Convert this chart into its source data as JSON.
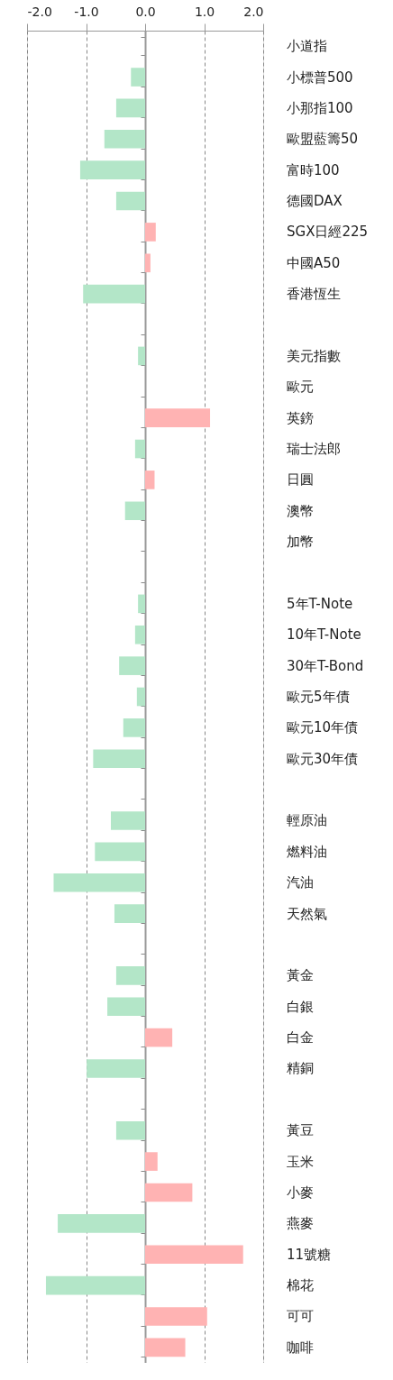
{
  "chart_data": {
    "type": "bar",
    "orientation": "horizontal",
    "categories": [
      "小道指",
      "小標普500",
      "小那指100",
      "歐盟藍籌50",
      "富時100",
      "德國DAX",
      "SGX日經225",
      "中國A50",
      "香港恆生",
      null,
      "美元指數",
      "歐元",
      "英鎊",
      "瑞士法郎",
      "日圓",
      "澳幣",
      "加幣",
      null,
      "5年T-Note",
      "10年T-Note",
      "30年T-Bond",
      "歐元5年債",
      "歐元10年債",
      "歐元30年債",
      null,
      "輕原油",
      "燃料油",
      "汽油",
      "天然氣",
      null,
      "黃金",
      "白銀",
      "白金",
      "精銅",
      null,
      "黃豆",
      "玉米",
      "小麥",
      "燕麥",
      "11號糖",
      "棉花",
      "可可",
      "咖啡"
    ],
    "values": [
      null,
      -0.24,
      -0.49,
      -0.69,
      -1.1,
      -0.49,
      0.18,
      0.09,
      -1.05,
      null,
      -0.12,
      null,
      1.1,
      -0.17,
      0.16,
      -0.34,
      null,
      null,
      -0.12,
      -0.17,
      -0.44,
      -0.14,
      -0.37,
      -0.88,
      null,
      -0.58,
      -0.85,
      -1.55,
      -0.52,
      null,
      -0.49,
      -0.64,
      0.46,
      -0.99,
      null,
      -0.49,
      0.21,
      0.8,
      -1.48,
      1.66,
      -1.68,
      1.05,
      0.68
    ],
    "colors": [
      null,
      "#b3e6c8",
      "#b3e6c8",
      "#b3e6c8",
      "#b3e6c8",
      "#b3e6c8",
      "#ffb3b3",
      "#ffb3b3",
      "#b3e6c8",
      null,
      "#b3e6c8",
      null,
      "#ffb3b3",
      "#b3e6c8",
      "#ffb3b3",
      "#b3e6c8",
      null,
      null,
      "#b3e6c8",
      "#b3e6c8",
      "#b3e6c8",
      "#b3e6c8",
      "#b3e6c8",
      "#b3e6c8",
      null,
      "#b3e6c8",
      "#b3e6c8",
      "#b3e6c8",
      "#b3e6c8",
      null,
      "#b3e6c8",
      "#b3e6c8",
      "#ffb3b3",
      "#b3e6c8",
      null,
      "#b3e6c8",
      "#ffb3b3",
      "#ffb3b3",
      "#b3e6c8",
      "#ffb3b3",
      "#b3e6c8",
      "#ffb3b3",
      "#ffb3b3"
    ],
    "xlim": [
      -2,
      2
    ],
    "xticks": [
      {
        "value": -2,
        "label": "-2.0"
      },
      {
        "value": -1,
        "label": "-1.0"
      },
      {
        "value": 0,
        "label": "0.0"
      },
      {
        "value": 1,
        "label": "1.0"
      },
      {
        "value": 2,
        "label": "2.0"
      }
    ],
    "grid": true
  }
}
